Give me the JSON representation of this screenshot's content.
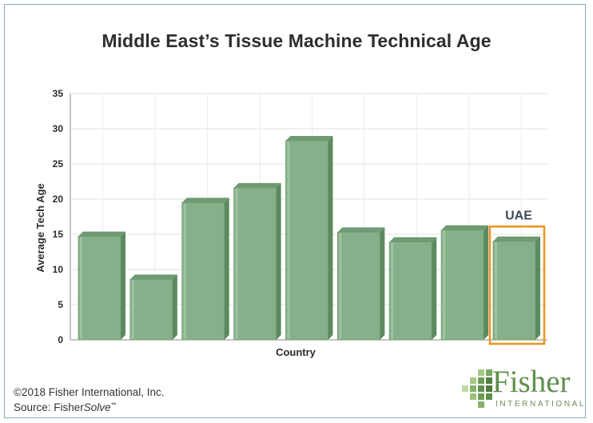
{
  "chart_data": {
    "type": "bar",
    "title": "Middle East’s Tissue Machine Technical Age",
    "xlabel": "Country",
    "ylabel": "Average Tech Age",
    "ylim": [
      0,
      35
    ],
    "yticks": [
      0,
      5,
      10,
      15,
      20,
      25,
      30,
      35
    ],
    "values": [
      14.7,
      8.6,
      19.5,
      21.6,
      28.3,
      15.3,
      13.9,
      15.6,
      14.0
    ],
    "highlight": {
      "index": 8,
      "label": "UAE",
      "color": "#f0921e"
    },
    "bar_color": "#86b089",
    "grid": true
  },
  "footer": {
    "copyright": "©2018 Fisher International, Inc.",
    "source_prefix": "Source: Fisher",
    "source_italic": "Solve",
    "source_tm": "™"
  },
  "logo": {
    "word": "Fisher",
    "sub": "INTERNATIONAL"
  }
}
